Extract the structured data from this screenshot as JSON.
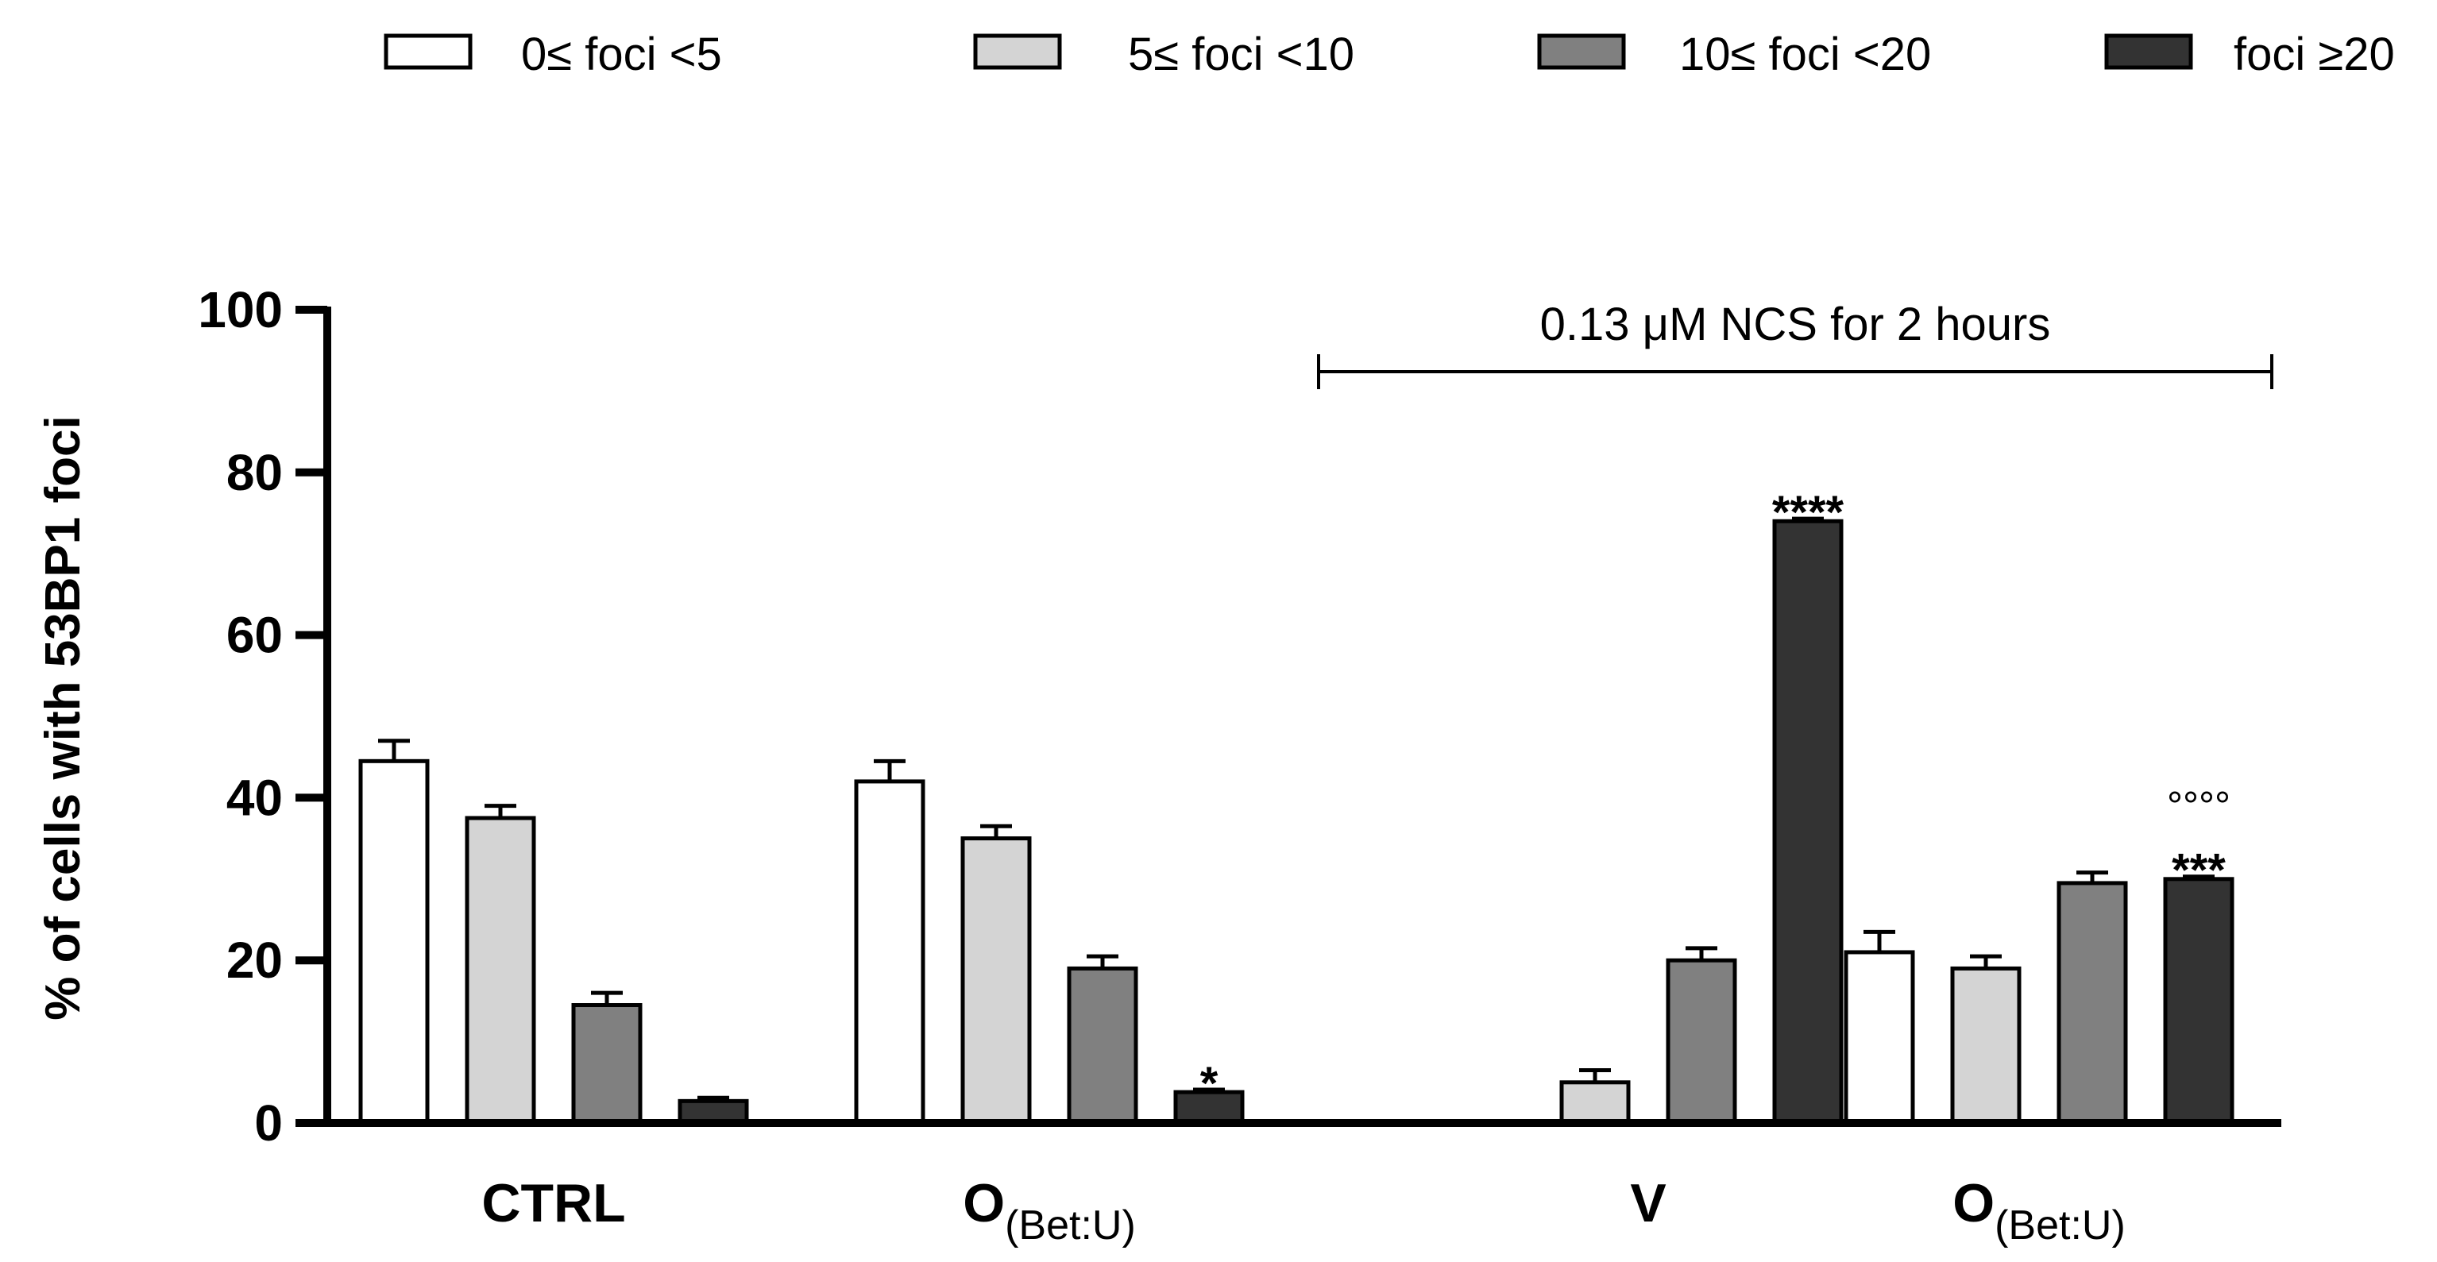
{
  "chart_data": {
    "type": "bar",
    "title": "",
    "xlabel": "",
    "ylabel": "% of cells with 53BP1 foci",
    "ylim": [
      0,
      100
    ],
    "yticks": [
      0,
      20,
      40,
      60,
      80,
      100
    ],
    "grid": false,
    "legend_position": "top",
    "categories": [
      {
        "main": "CTRL",
        "sub": ""
      },
      {
        "main": "O",
        "sub": "(Bet:U)"
      },
      {
        "main": "V",
        "sub": ""
      },
      {
        "main": "O",
        "sub": "(Bet:U)"
      }
    ],
    "series": [
      {
        "name": "0≤ foci <5",
        "color": "#ffffff",
        "values": [
          44.5,
          42,
          0,
          21
        ],
        "errors": [
          2.5,
          2.5,
          0,
          2.5
        ]
      },
      {
        "name": "5≤ foci <10",
        "color": "#d4d4d4",
        "values": [
          37.5,
          35,
          5,
          19
        ],
        "errors": [
          1.5,
          1.5,
          1.5,
          1.5
        ]
      },
      {
        "name": "10≤ foci <20",
        "color": "#808080",
        "values": [
          14.5,
          19,
          20,
          29.5
        ],
        "errors": [
          1.5,
          1.5,
          1.5,
          1.3
        ]
      },
      {
        "name": "foci ≥20",
        "color": "#333333",
        "values": [
          2.7,
          3.8,
          74,
          30
        ],
        "errors": [
          0.4,
          0.3,
          0.3,
          0.3
        ]
      }
    ],
    "significance": [
      {
        "category": 1,
        "series": 3,
        "labels": [
          "*"
        ]
      },
      {
        "category": 2,
        "series": 3,
        "labels": [
          "****"
        ]
      },
      {
        "category": 3,
        "series": 3,
        "labels": [
          "°°°°",
          "***"
        ]
      }
    ],
    "treatment_bracket": {
      "label": "0.13 μM NCS for 2 hours",
      "from_category": 2,
      "to_category": 3
    }
  }
}
